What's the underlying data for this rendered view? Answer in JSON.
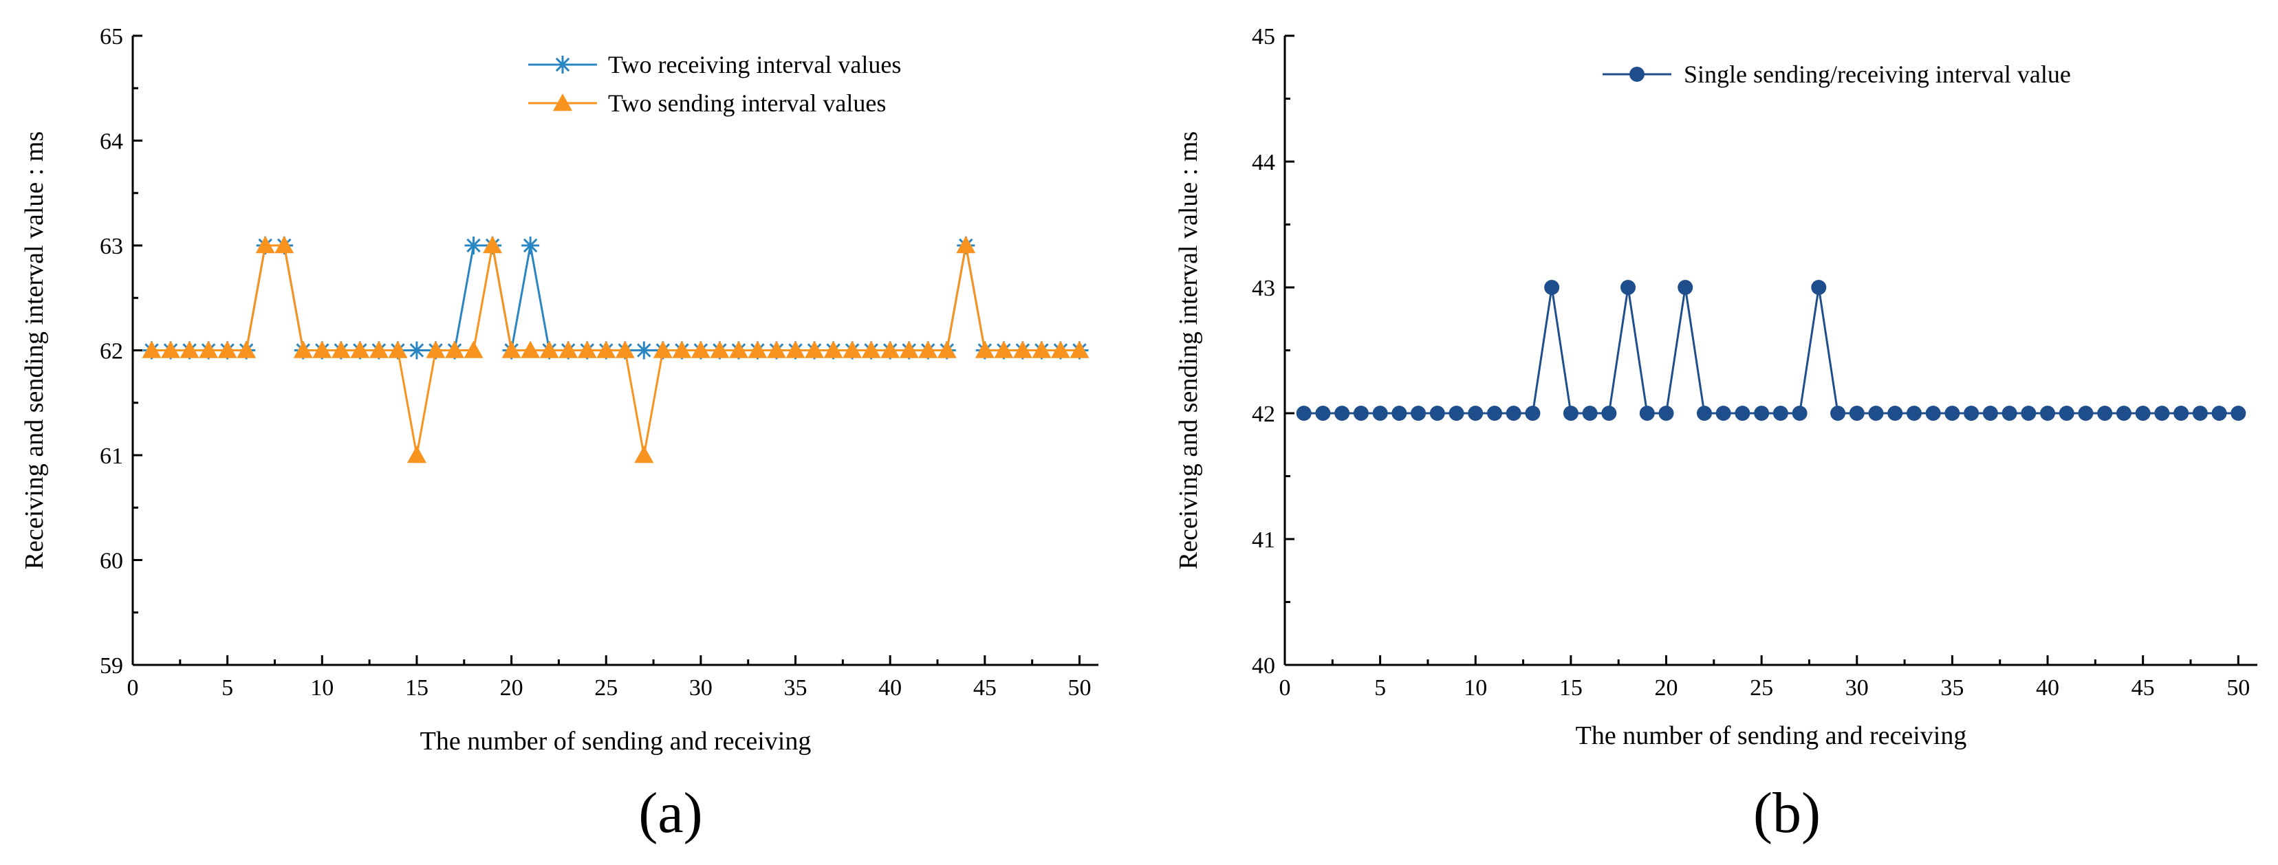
{
  "chart_data": [
    {
      "type": "line",
      "panel_label": "(a)",
      "xlabel": "The number of sending and receiving",
      "ylabel": "Receiving and sending interval value : ms",
      "xlim": [
        0,
        51
      ],
      "ylim": [
        59,
        65
      ],
      "xticks": [
        0,
        5,
        10,
        15,
        20,
        25,
        30,
        35,
        40,
        45,
        50
      ],
      "yticks": [
        59,
        60,
        61,
        62,
        63,
        64,
        65
      ],
      "grid": false,
      "legend_position": "top-right",
      "x": [
        1,
        2,
        3,
        4,
        5,
        6,
        7,
        8,
        9,
        10,
        11,
        12,
        13,
        14,
        15,
        16,
        17,
        18,
        19,
        20,
        21,
        22,
        23,
        24,
        25,
        26,
        27,
        28,
        29,
        30,
        31,
        32,
        33,
        34,
        35,
        36,
        37,
        38,
        39,
        40,
        41,
        42,
        43,
        44,
        45,
        46,
        47,
        48,
        49,
        50
      ],
      "series": [
        {
          "name": "Two receiving interval values",
          "color": "#2a86c2",
          "marker": "asterisk",
          "values": [
            62,
            62,
            62,
            62,
            62,
            62,
            63,
            63,
            62,
            62,
            62,
            62,
            62,
            62,
            62,
            62,
            62,
            63,
            63,
            62,
            63,
            62,
            62,
            62,
            62,
            62,
            62,
            62,
            62,
            62,
            62,
            62,
            62,
            62,
            62,
            62,
            62,
            62,
            62,
            62,
            62,
            62,
            62,
            63,
            62,
            62,
            62,
            62,
            62,
            62
          ]
        },
        {
          "name": "Two sending interval values",
          "color": "#f7931e",
          "marker": "triangle",
          "values": [
            62,
            62,
            62,
            62,
            62,
            62,
            63,
            63,
            62,
            62,
            62,
            62,
            62,
            62,
            61,
            62,
            62,
            62,
            63,
            62,
            62,
            62,
            62,
            62,
            62,
            62,
            61,
            62,
            62,
            62,
            62,
            62,
            62,
            62,
            62,
            62,
            62,
            62,
            62,
            62,
            62,
            62,
            62,
            63,
            62,
            62,
            62,
            62,
            62,
            62
          ]
        }
      ]
    },
    {
      "type": "line",
      "panel_label": "(b)",
      "xlabel": "The number of sending and receiving",
      "ylabel": "Receiving and sending interval value : ms",
      "xlim": [
        0,
        51
      ],
      "ylim": [
        40,
        45
      ],
      "xticks": [
        0,
        5,
        10,
        15,
        20,
        25,
        30,
        35,
        40,
        45,
        50
      ],
      "yticks": [
        40,
        41,
        42,
        43,
        44,
        45
      ],
      "grid": false,
      "legend_position": "top-right",
      "x": [
        1,
        2,
        3,
        4,
        5,
        6,
        7,
        8,
        9,
        10,
        11,
        12,
        13,
        14,
        15,
        16,
        17,
        18,
        19,
        20,
        21,
        22,
        23,
        24,
        25,
        26,
        27,
        28,
        29,
        30,
        31,
        32,
        33,
        34,
        35,
        36,
        37,
        38,
        39,
        40,
        41,
        42,
        43,
        44,
        45,
        46,
        47,
        48,
        49,
        50
      ],
      "series": [
        {
          "name": "Single sending/receiving interval value",
          "color": "#1f4e8c",
          "marker": "circle",
          "values": [
            42,
            42,
            42,
            42,
            42,
            42,
            42,
            42,
            42,
            42,
            42,
            42,
            42,
            43,
            42,
            42,
            42,
            43,
            42,
            42,
            43,
            42,
            42,
            42,
            42,
            42,
            42,
            43,
            42,
            42,
            42,
            42,
            42,
            42,
            42,
            42,
            42,
            42,
            42,
            42,
            42,
            42,
            42,
            42,
            42,
            42,
            42,
            42,
            42,
            42
          ]
        }
      ]
    }
  ]
}
